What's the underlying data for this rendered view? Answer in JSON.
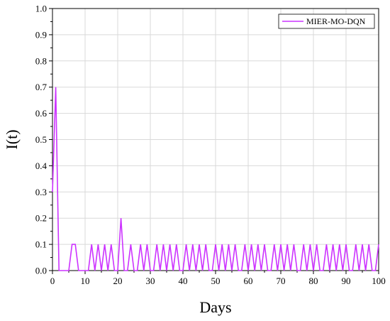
{
  "chart_data": {
    "type": "line",
    "title": "",
    "xlabel": "Days",
    "ylabel": "I(t)",
    "xlim": [
      0,
      100
    ],
    "ylim": [
      0,
      1.0
    ],
    "xticks": [
      "0",
      "10",
      "20",
      "30",
      "40",
      "50",
      "60",
      "70",
      "80",
      "90",
      "100"
    ],
    "yticks": [
      "0.0",
      "0.1",
      "0.2",
      "0.3",
      "0.4",
      "0.5",
      "0.6",
      "0.7",
      "0.8",
      "0.9",
      "1.0"
    ],
    "grid": true,
    "legend_position": "top-right",
    "series": [
      {
        "name": "MIER-MO-DQN",
        "color": "#cc33ff",
        "x": [
          0,
          1,
          2,
          3,
          4,
          5,
          6,
          7,
          8,
          9,
          10,
          11,
          12,
          13,
          14,
          15,
          16,
          17,
          18,
          19,
          20,
          21,
          22,
          23,
          24,
          25,
          26,
          27,
          28,
          29,
          30,
          31,
          32,
          33,
          34,
          35,
          36,
          37,
          38,
          39,
          40,
          41,
          42,
          43,
          44,
          45,
          46,
          47,
          48,
          49,
          50,
          51,
          52,
          53,
          54,
          55,
          56,
          57,
          58,
          59,
          60,
          61,
          62,
          63,
          64,
          65,
          66,
          67,
          68,
          69,
          70,
          71,
          72,
          73,
          74,
          75,
          76,
          77,
          78,
          79,
          80,
          81,
          82,
          83,
          84,
          85,
          86,
          87,
          88,
          89,
          90,
          91,
          92,
          93,
          94,
          95,
          96,
          97,
          98,
          99,
          100
        ],
        "y": [
          0.3,
          0.7,
          0,
          0,
          0,
          0,
          0.1,
          0.1,
          0,
          0,
          0,
          0,
          0.1,
          0,
          0.1,
          0,
          0.1,
          0,
          0.1,
          0,
          0,
          0.2,
          0,
          0,
          0.1,
          0,
          0,
          0.1,
          0,
          0.1,
          0,
          0,
          0.1,
          0,
          0.1,
          0,
          0.1,
          0,
          0.1,
          0,
          0,
          0.1,
          0,
          0.1,
          0,
          0.1,
          0,
          0.1,
          0,
          0,
          0.1,
          0,
          0.1,
          0,
          0.1,
          0,
          0.1,
          0,
          0,
          0.1,
          0,
          0.1,
          0,
          0.1,
          0,
          0.1,
          0,
          0,
          0.1,
          0,
          0.1,
          0,
          0.1,
          0,
          0.1,
          0,
          0,
          0.1,
          0,
          0.1,
          0,
          0.1,
          0,
          0,
          0.1,
          0,
          0.1,
          0,
          0.1,
          0,
          0.1,
          0,
          0,
          0.1,
          0,
          0.1,
          0,
          0.1,
          0,
          0,
          0.1
        ]
      }
    ]
  }
}
